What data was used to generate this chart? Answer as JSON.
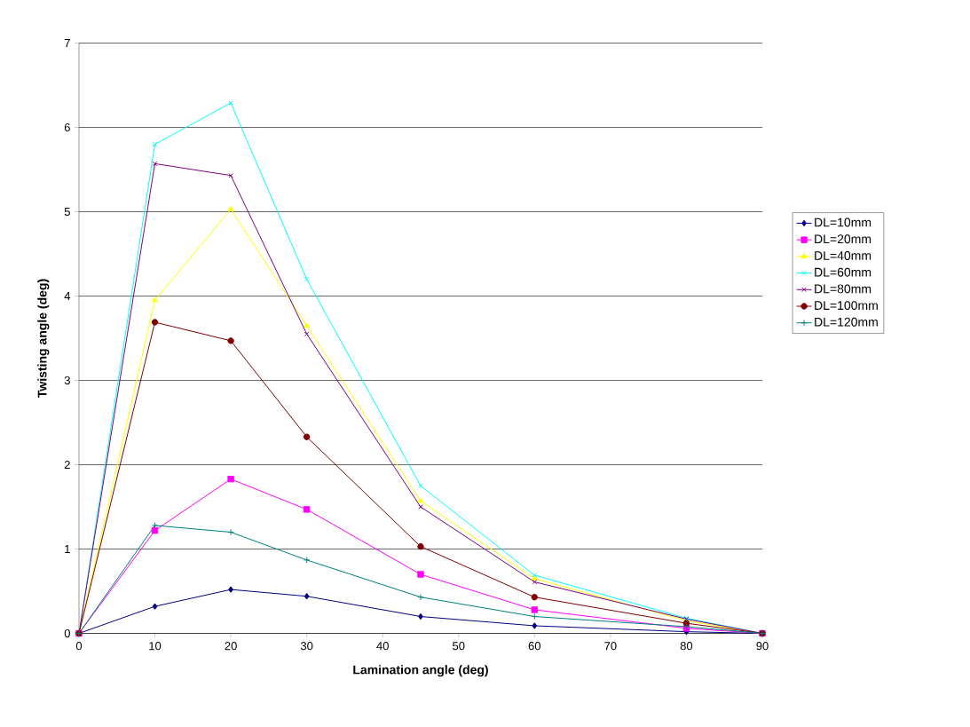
{
  "chart_data": {
    "type": "line",
    "xlabel": "Lamination angle (deg)",
    "ylabel": "Twisting angle (deg)",
    "x": [
      0,
      10,
      20,
      30,
      45,
      60,
      80,
      90
    ],
    "xlim": [
      0,
      90
    ],
    "xticks": [
      0,
      10,
      20,
      30,
      40,
      50,
      60,
      70,
      80,
      90
    ],
    "ylim": [
      0,
      7
    ],
    "yticks": [
      0,
      1,
      2,
      3,
      4,
      5,
      6,
      7
    ],
    "grid": "y",
    "legend": "right",
    "series": [
      {
        "name": "DL=10mm",
        "color": "#000080",
        "marker": "diamond",
        "values": [
          0,
          0.32,
          0.52,
          0.44,
          0.2,
          0.09,
          0.02,
          0
        ]
      },
      {
        "name": "DL=20mm",
        "color": "#ff00ff",
        "marker": "square",
        "values": [
          0,
          1.22,
          1.83,
          1.47,
          0.7,
          0.28,
          0.06,
          0
        ]
      },
      {
        "name": "DL=40mm",
        "color": "#ffff00",
        "marker": "triangle",
        "values": [
          0,
          3.95,
          5.03,
          3.65,
          1.57,
          0.65,
          0.15,
          0
        ]
      },
      {
        "name": "DL=60mm",
        "color": "#00ffff",
        "marker": "cross",
        "values": [
          0,
          5.8,
          6.29,
          4.2,
          1.75,
          0.69,
          0.18,
          0
        ]
      },
      {
        "name": "DL=80mm",
        "color": "#800080",
        "marker": "cross",
        "values": [
          0,
          5.57,
          5.43,
          3.55,
          1.5,
          0.61,
          0.17,
          0
        ]
      },
      {
        "name": "DL=100mm",
        "color": "#800000",
        "marker": "circle",
        "values": [
          0,
          3.69,
          3.47,
          2.33,
          1.03,
          0.43,
          0.12,
          0
        ]
      },
      {
        "name": "DL=120mm",
        "color": "#008080",
        "marker": "plus",
        "values": [
          0,
          1.28,
          1.2,
          0.87,
          0.43,
          0.2,
          0.08,
          0
        ]
      }
    ]
  }
}
